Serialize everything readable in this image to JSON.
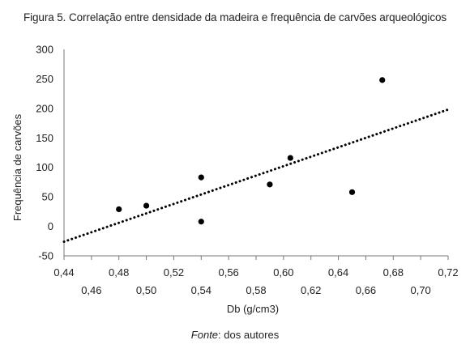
{
  "chart_data": {
    "type": "scatter",
    "title": "Figura 5. Correlação entre densidade da madeira e frequência de carvões arqueológicos",
    "xlabel": "Db (g/cm3)",
    "ylabel": "Frequência de carvões",
    "xlim": [
      0.44,
      0.72
    ],
    "ylim": [
      -50,
      300
    ],
    "x_ticks_upper": [
      "0,44",
      "0,48",
      "0,52",
      "0,56",
      "0,60",
      "0,64",
      "0,68",
      "0,72"
    ],
    "x_ticks_lower": [
      "0,46",
      "0,50",
      "0,54",
      "0,58",
      "0,62",
      "0,66",
      "0,70"
    ],
    "y_ticks": [
      "-50",
      "0",
      "50",
      "100",
      "150",
      "200",
      "250",
      "300"
    ],
    "points": [
      {
        "x": 0.48,
        "y": 29
      },
      {
        "x": 0.5,
        "y": 35
      },
      {
        "x": 0.54,
        "y": 83
      },
      {
        "x": 0.54,
        "y": 8
      },
      {
        "x": 0.59,
        "y": 71
      },
      {
        "x": 0.605,
        "y": 116
      },
      {
        "x": 0.65,
        "y": 58
      },
      {
        "x": 0.672,
        "y": 248
      }
    ],
    "trendline": {
      "type": "linear",
      "style": "dotted",
      "x": [
        0.44,
        0.72
      ],
      "y": [
        -26,
        198
      ]
    },
    "grid": false,
    "legend": "none"
  },
  "footer": {
    "source_label": "Fonte",
    "source_text": ": dos autores"
  }
}
